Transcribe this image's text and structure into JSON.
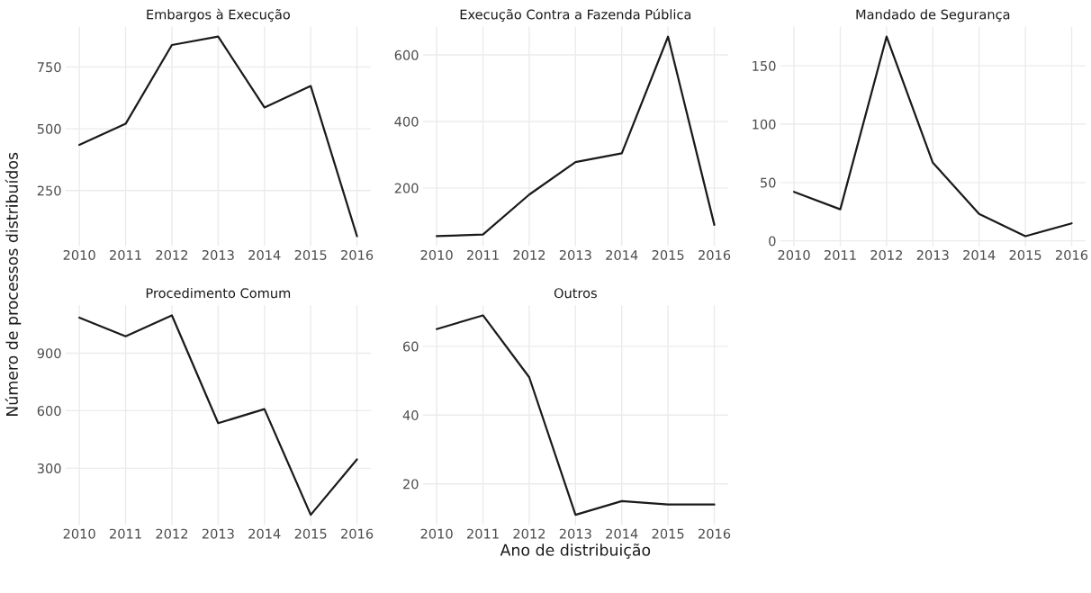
{
  "chart_data": [
    {
      "type": "line",
      "title": "Embargos à Execução",
      "x": [
        2010,
        2011,
        2012,
        2013,
        2014,
        2015,
        2016
      ],
      "xlim": [
        2009.7,
        2016.3
      ],
      "xticks": [
        2010,
        2011,
        2012,
        2013,
        2014,
        2015,
        2016
      ],
      "ylim": [
        25,
        913
      ],
      "yticks": [
        250,
        500,
        750
      ],
      "grid": true,
      "series": [
        {
          "color": "#1a1a1a",
          "values": [
            435,
            520,
            839,
            873,
            586,
            673,
            65
          ]
        }
      ]
    },
    {
      "type": "line",
      "title": "Execução Contra a Fazenda Pública",
      "x": [
        2010,
        2011,
        2012,
        2013,
        2014,
        2015,
        2016
      ],
      "xlim": [
        2009.7,
        2016.3
      ],
      "xticks": [
        2010,
        2011,
        2012,
        2013,
        2014,
        2015,
        2016
      ],
      "ylim": [
        25,
        685
      ],
      "yticks": [
        200,
        400,
        600
      ],
      "grid": true,
      "series": [
        {
          "color": "#1a1a1a",
          "values": [
            55,
            60,
            180,
            278,
            304,
            655,
            89
          ]
        }
      ]
    },
    {
      "type": "line",
      "title": "Mandado de Segurança",
      "x": [
        2010,
        2011,
        2012,
        2013,
        2014,
        2015,
        2016
      ],
      "xlim": [
        2009.7,
        2016.3
      ],
      "xticks": [
        2010,
        2011,
        2012,
        2013,
        2014,
        2015,
        2016
      ],
      "ylim": [
        -4.5,
        183.5
      ],
      "yticks": [
        0,
        50,
        100,
        150
      ],
      "grid": true,
      "series": [
        {
          "color": "#1a1a1a",
          "values": [
            42,
            27,
            175,
            67,
            23,
            4,
            15
          ]
        }
      ]
    },
    {
      "type": "line",
      "title": "Procedimento Comum",
      "ylabel": "Número de processos distribuídos",
      "x": [
        2010,
        2011,
        2012,
        2013,
        2014,
        2015,
        2016
      ],
      "xlim": [
        2009.7,
        2016.3
      ],
      "xticks": [
        2010,
        2011,
        2012,
        2013,
        2014,
        2015,
        2016
      ],
      "ylim": [
        5,
        1149
      ],
      "yticks": [
        300,
        600,
        900
      ],
      "grid": true,
      "series": [
        {
          "color": "#1a1a1a",
          "values": [
            1085,
            988,
            1097,
            535,
            608,
            57,
            346
          ]
        }
      ]
    },
    {
      "type": "line",
      "title": "Outros",
      "xlabel": "Ano de distribuição",
      "x": [
        2010,
        2011,
        2012,
        2013,
        2014,
        2015,
        2016
      ],
      "xlim": [
        2009.7,
        2016.3
      ],
      "xticks": [
        2010,
        2011,
        2012,
        2013,
        2014,
        2015,
        2016
      ],
      "ylim": [
        8.1,
        71.9
      ],
      "yticks": [
        20,
        40,
        60
      ],
      "grid": true,
      "series": [
        {
          "color": "#1a1a1a",
          "values": [
            65,
            69,
            51,
            11,
            15,
            14,
            14
          ]
        }
      ]
    }
  ]
}
